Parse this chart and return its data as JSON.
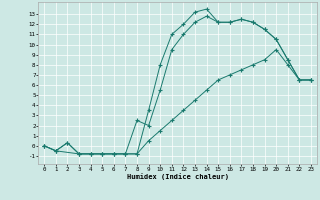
{
  "xlabel": "Humidex (Indice chaleur)",
  "background_color": "#cde8e4",
  "grid_color": "#ffffff",
  "line_color": "#1a7a6e",
  "xlim": [
    -0.5,
    23.5
  ],
  "ylim": [
    -1.8,
    14.2
  ],
  "xticks": [
    0,
    1,
    2,
    3,
    4,
    5,
    6,
    7,
    8,
    9,
    10,
    11,
    12,
    13,
    14,
    15,
    16,
    17,
    18,
    19,
    20,
    21,
    22,
    23
  ],
  "yticks": [
    -1,
    0,
    1,
    2,
    3,
    4,
    5,
    6,
    7,
    8,
    9,
    10,
    11,
    12,
    13
  ],
  "curve1_x": [
    0,
    1,
    2,
    3,
    4,
    5,
    6,
    7,
    8,
    9,
    10,
    11,
    12,
    13,
    14,
    15,
    16,
    17,
    18,
    19,
    20,
    21,
    22,
    23
  ],
  "curve1_y": [
    0,
    -0.5,
    0.3,
    -0.8,
    -0.8,
    -0.8,
    -0.8,
    -0.8,
    -0.8,
    3.5,
    8,
    11,
    12,
    13.2,
    13.5,
    12.2,
    12.2,
    12.5,
    12.2,
    11.5,
    10.5,
    8.5,
    6.5,
    6.5
  ],
  "curve2_x": [
    0,
    1,
    2,
    3,
    4,
    5,
    6,
    7,
    8,
    9,
    10,
    11,
    12,
    13,
    14,
    15,
    16,
    17,
    18,
    19,
    20,
    21,
    22,
    23
  ],
  "curve2_y": [
    0,
    -0.5,
    0.3,
    -0.8,
    -0.8,
    -0.8,
    -0.8,
    -0.8,
    2.5,
    2.0,
    5.5,
    9.5,
    11,
    12.2,
    12.8,
    12.2,
    12.2,
    12.5,
    12.2,
    11.5,
    10.5,
    8.5,
    6.5,
    6.5
  ],
  "curve3_x": [
    0,
    1,
    3,
    4,
    5,
    6,
    7,
    8,
    9,
    10,
    11,
    12,
    13,
    14,
    15,
    16,
    17,
    18,
    19,
    20,
    21,
    22,
    23
  ],
  "curve3_y": [
    0,
    -0.5,
    -0.8,
    -0.8,
    -0.8,
    -0.8,
    -0.8,
    -0.8,
    0.5,
    1.5,
    2.5,
    3.5,
    4.5,
    5.5,
    6.5,
    7.0,
    7.5,
    8.0,
    8.5,
    9.5,
    8.0,
    6.5,
    6.5
  ]
}
